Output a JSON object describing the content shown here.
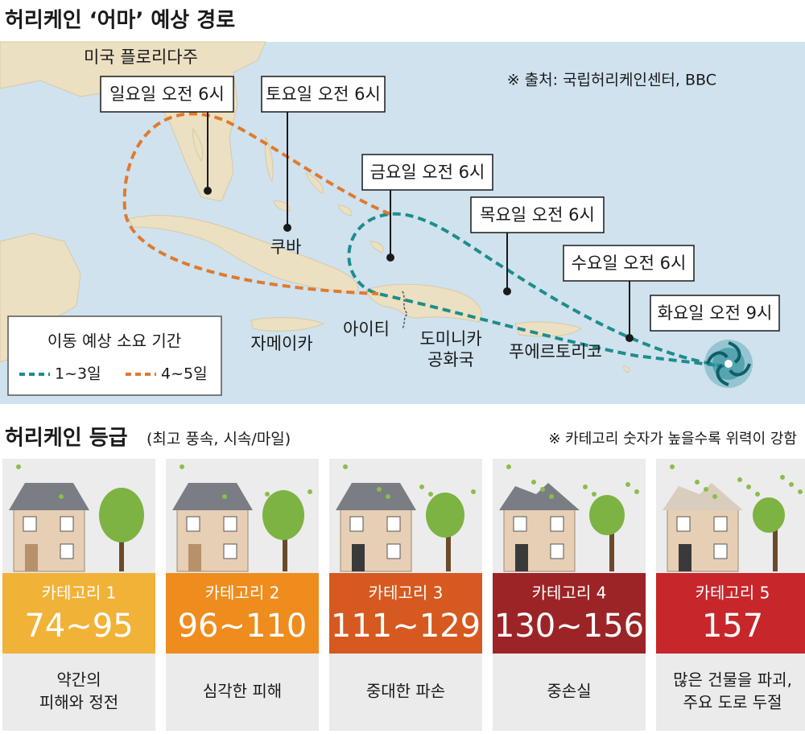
{
  "map": {
    "title": "허리케인 ‘어마’ 예상 경로",
    "source": "※ 출처: 국립허리케인센터, BBC",
    "places": [
      {
        "lines": [
          "미국 플로리다주"
        ]
      },
      {
        "lines": [
          "쿠바"
        ]
      },
      {
        "lines": [
          "자메이카"
        ]
      },
      {
        "lines": [
          "아이티"
        ]
      },
      {
        "lines": [
          "도미니카",
          "공화국"
        ]
      },
      {
        "lines": [
          "푸에르토리코"
        ]
      }
    ],
    "path_labels": [
      "일요일 오전 6시",
      "토요일 오전 6시",
      "금요일 오전 6시",
      "목요일 오전 6시",
      "수요일 오전 6시",
      "화요일 오전 9시"
    ],
    "legend": {
      "title": "이동 예상 소요 기간",
      "items": [
        {
          "name": "1~3일",
          "color": "#1f8c8c"
        },
        {
          "name": "4~5일",
          "color": "#e07a2e"
        }
      ]
    }
  },
  "grades": {
    "title": "허리케인 등급",
    "subtitle": "(최고 풍속, 시속/마일)",
    "note": "※ 카테고리 숫자가 높을수록 위력이 강함",
    "items": [
      {
        "category": "카테고리 1",
        "speed": "74~95",
        "effect": [
          "약간의",
          "피해와 정전"
        ],
        "color": "#f1b238"
      },
      {
        "category": "카테고리 2",
        "speed": "96~110",
        "effect": [
          "심각한 피해"
        ],
        "color": "#ee8c1d"
      },
      {
        "category": "카테고리 3",
        "speed": "111~129",
        "effect": [
          "중대한 파손"
        ],
        "color": "#d6591f"
      },
      {
        "category": "카테고리 4",
        "speed": "130~156",
        "effect": [
          "중손실"
        ],
        "color": "#9c2426"
      },
      {
        "category": "카테고리 5",
        "speed": "157",
        "effect": [
          "많은 건물을 파괴,",
          "주요 도로 두절"
        ],
        "color": "#c7262b"
      }
    ]
  }
}
